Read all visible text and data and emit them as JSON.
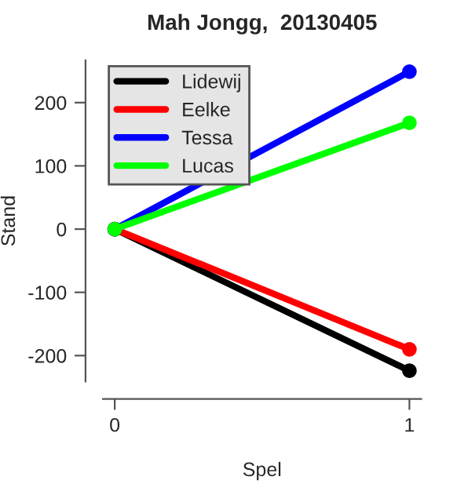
{
  "chart_data": {
    "type": "line",
    "title": "Mah Jongg,  20130405",
    "xlabel": "Spel",
    "ylabel": "Stand",
    "x": [
      0,
      1
    ],
    "series": [
      {
        "name": "Lidewij",
        "color": "#000000",
        "values": [
          0,
          -224
        ]
      },
      {
        "name": "Eelke",
        "color": "#ff0000",
        "values": [
          0,
          -190
        ]
      },
      {
        "name": "Tessa",
        "color": "#0000ff",
        "values": [
          0,
          249
        ]
      },
      {
        "name": "Lucas",
        "color": "#00ff00",
        "values": [
          0,
          168
        ]
      }
    ],
    "xlim": [
      -0.04,
      1.04
    ],
    "ylim": [
      -241,
      267
    ],
    "xticks": [
      0,
      1
    ],
    "yticks": [
      -200,
      -100,
      0,
      100,
      200
    ],
    "marker": "circle",
    "line_style": "solid",
    "legend": "top left",
    "grid": false
  }
}
